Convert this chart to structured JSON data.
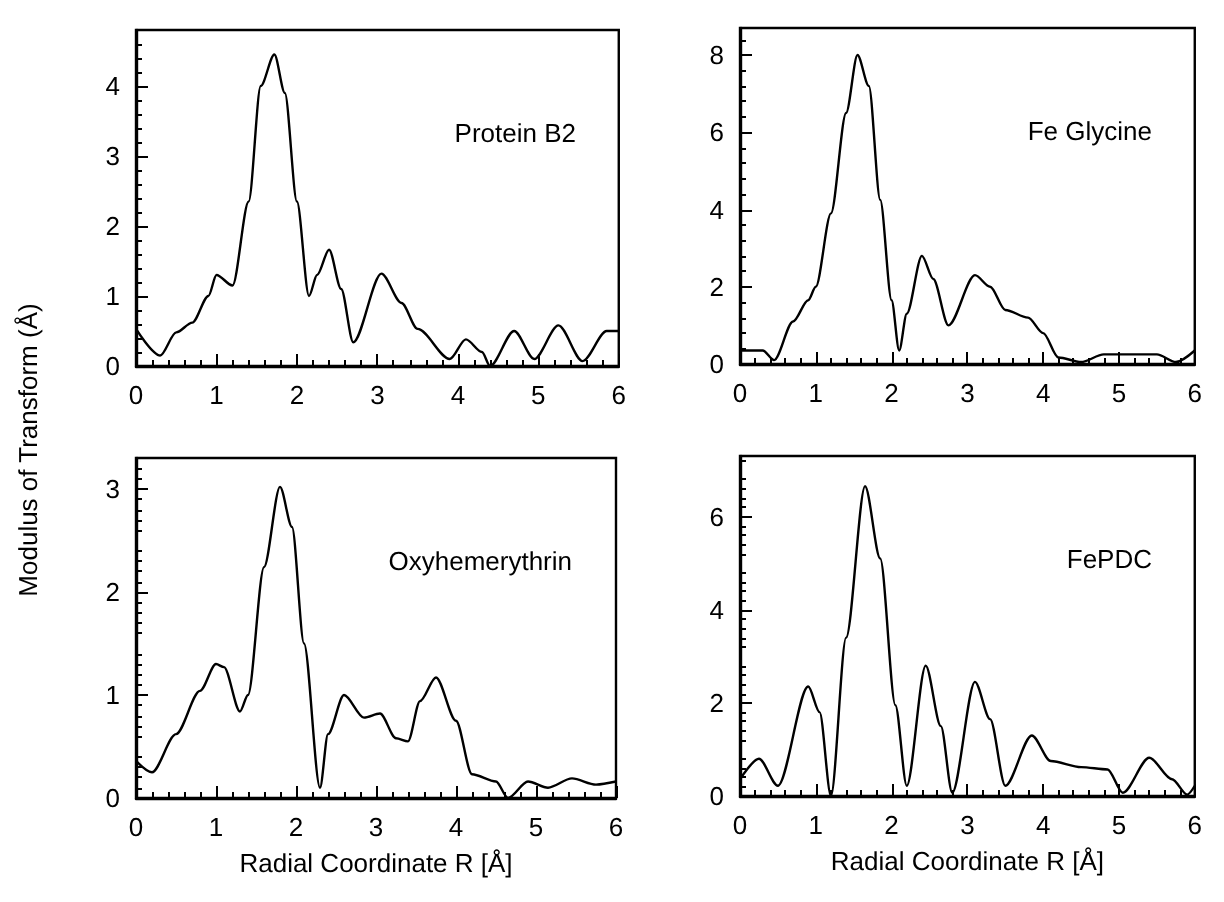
{
  "chart_data": [
    {
      "type": "line",
      "ylabel": "Modulus of Transform (Å)",
      "annotations": [
        "Protein B2"
      ],
      "xlim": [
        0,
        6
      ],
      "xticks": [
        0,
        1,
        2,
        3,
        4,
        5,
        6
      ],
      "ylim": [
        0,
        4.8
      ],
      "yticks": [
        0,
        1,
        2,
        3,
        4
      ],
      "grid": false,
      "marker": "none",
      "line_style": "solid",
      "series": [
        {
          "color": "#000000",
          "x": [
            0,
            0.3,
            0.5,
            0.7,
            0.9,
            1.0,
            1.2,
            1.4,
            1.55,
            1.72,
            1.85,
            2.0,
            2.15,
            2.25,
            2.4,
            2.55,
            2.7,
            3.05,
            3.3,
            3.5,
            3.9,
            4.1,
            4.3,
            4.4,
            4.7,
            4.95,
            5.25,
            5.55,
            5.85,
            6.0
          ],
          "values": [
            0.53,
            0.15,
            0.48,
            0.62,
            1.0,
            1.3,
            1.15,
            2.35,
            4.0,
            4.45,
            3.9,
            2.35,
            1.0,
            1.3,
            1.66,
            1.1,
            0.34,
            1.32,
            0.9,
            0.53,
            0.1,
            0.38,
            0.2,
            0,
            0.5,
            0.1,
            0.58,
            0.07,
            0.5,
            0.5
          ]
        }
      ]
    },
    {
      "type": "line",
      "annotations": [
        "Fe Glycine"
      ],
      "xlim": [
        0,
        6
      ],
      "xticks": [
        0,
        1,
        2,
        3,
        4,
        5,
        6
      ],
      "ylim": [
        0,
        8.7
      ],
      "yticks": [
        0,
        2,
        4,
        6,
        8
      ],
      "grid": false,
      "marker": "none",
      "line_style": "solid",
      "series": [
        {
          "color": "#000000",
          "x": [
            0,
            0.3,
            0.45,
            0.7,
            0.9,
            1.0,
            1.2,
            1.4,
            1.55,
            1.7,
            1.85,
            2.0,
            2.1,
            2.2,
            2.4,
            2.55,
            2.75,
            3.1,
            3.3,
            3.5,
            3.8,
            4.0,
            4.2,
            4.5,
            4.8,
            5.2,
            5.5,
            5.75,
            6.0
          ],
          "values": [
            0.35,
            0.35,
            0.1,
            1.1,
            1.65,
            2.0,
            3.9,
            6.5,
            8.0,
            7.2,
            4.25,
            1.65,
            0.35,
            1.3,
            2.8,
            2.2,
            1.0,
            2.3,
            2.0,
            1.4,
            1.2,
            0.8,
            0.17,
            0.05,
            0.25,
            0.25,
            0.25,
            0.05,
            0.35
          ]
        }
      ]
    },
    {
      "type": "line",
      "xlabel": "Radial Coordinate R [Å]",
      "annotations": [
        "Oxyhemerythrin"
      ],
      "xlim": [
        0,
        6
      ],
      "xticks": [
        0,
        1,
        2,
        3,
        4,
        5,
        6
      ],
      "ylim": [
        0,
        3.3
      ],
      "yticks": [
        0,
        1,
        2,
        3
      ],
      "grid": false,
      "marker": "none",
      "line_style": "solid",
      "series": [
        {
          "color": "#000000",
          "x": [
            0,
            0.2,
            0.5,
            0.8,
            1.0,
            1.1,
            1.3,
            1.4,
            1.6,
            1.8,
            1.95,
            2.1,
            2.3,
            2.4,
            2.6,
            2.85,
            3.05,
            3.25,
            3.4,
            3.55,
            3.75,
            4.0,
            4.2,
            4.5,
            4.65,
            4.9,
            5.15,
            5.45,
            5.75,
            6.0
          ],
          "values": [
            0.36,
            0.25,
            0.62,
            1.04,
            1.3,
            1.27,
            0.84,
            1.0,
            2.24,
            3.02,
            2.63,
            1.5,
            0.1,
            0.62,
            1.0,
            0.78,
            0.82,
            0.58,
            0.55,
            0.94,
            1.17,
            0.75,
            0.23,
            0.16,
            0,
            0.16,
            0.1,
            0.19,
            0.13,
            0.16
          ]
        }
      ]
    },
    {
      "type": "line",
      "xlabel": "Radial Coordinate R [Å]",
      "annotations": [
        "FePDC"
      ],
      "xlim": [
        0,
        6
      ],
      "xticks": [
        0,
        1,
        2,
        3,
        4,
        5,
        6
      ],
      "ylim": [
        0,
        7.3
      ],
      "yticks": [
        0,
        2,
        4,
        6
      ],
      "grid": false,
      "marker": "none",
      "line_style": "solid",
      "series": [
        {
          "color": "#000000",
          "x": [
            0,
            0.25,
            0.5,
            0.9,
            1.05,
            1.2,
            1.4,
            1.65,
            1.85,
            2.05,
            2.2,
            2.45,
            2.65,
            2.8,
            3.1,
            3.3,
            3.5,
            3.85,
            4.1,
            4.5,
            4.85,
            5.05,
            5.4,
            5.7,
            5.9,
            6.0
          ],
          "values": [
            0.36,
            0.8,
            0.22,
            2.35,
            1.8,
            0,
            3.4,
            6.65,
            5.1,
            1.95,
            0.22,
            2.8,
            1.5,
            0.07,
            2.45,
            1.65,
            0.22,
            1.3,
            0.75,
            0.62,
            0.57,
            0.07,
            0.82,
            0.36,
            0.03,
            0.22
          ]
        }
      ]
    }
  ]
}
